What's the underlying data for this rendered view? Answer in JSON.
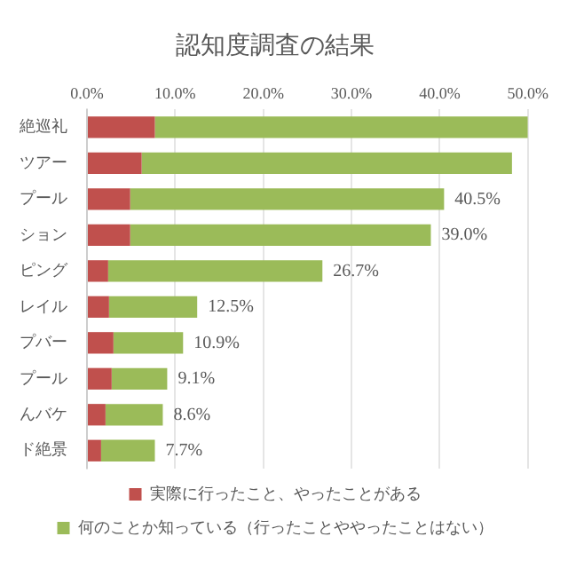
{
  "chart_data": {
    "type": "bar",
    "orientation": "horizontal",
    "stacked": true,
    "title": "認知度調査の結果",
    "categories": [
      "絶巡礼",
      "ツアー",
      "プール",
      "ション",
      "ピング",
      "レイル",
      "プバー",
      "プール",
      "んバケ",
      "ド絶景"
    ],
    "series": [
      {
        "name": "実際に行ったこと、やったことがある",
        "color": "#c0504d",
        "values": [
          7.7,
          6.2,
          4.9,
          4.9,
          2.4,
          2.5,
          3.0,
          2.8,
          2.1,
          1.6
        ]
      },
      {
        "name": "何のことか知っている（行ったことややったことはない）",
        "color": "#9bbb59",
        "values": [
          42.3,
          42.0,
          35.6,
          34.1,
          24.3,
          10.0,
          7.9,
          6.3,
          6.5,
          6.1
        ]
      }
    ],
    "totals": [
      null,
      null,
      "40.5%",
      "39.0%",
      "26.7%",
      "12.5%",
      "10.9%",
      "9.1%",
      "8.6%",
      "7.7%"
    ],
    "xlim": [
      0,
      50
    ],
    "xticks": [
      {
        "value": 0,
        "label": "0.0%"
      },
      {
        "value": 10,
        "label": "10.0%"
      },
      {
        "value": 20,
        "label": "20.0%"
      },
      {
        "value": 30,
        "label": "30.0%"
      },
      {
        "value": 40,
        "label": "40.0%"
      },
      {
        "value": 50,
        "label": "50.0%"
      }
    ],
    "grid": "x",
    "legend": "bottom"
  }
}
